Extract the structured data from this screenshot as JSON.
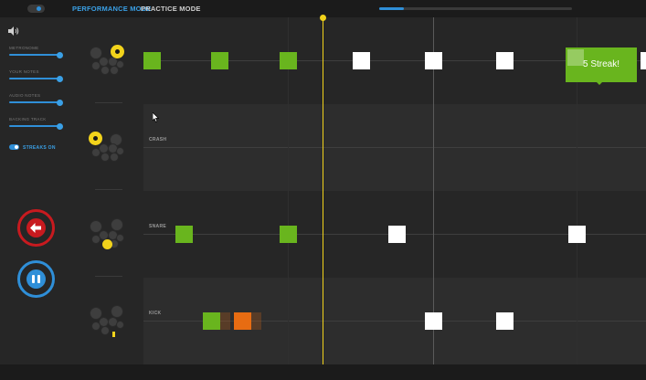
{
  "header": {
    "performance_mode": "PERFORMANCE MODE",
    "practice_mode": "PRACTICE MODE",
    "song_progress": 0.13
  },
  "sidebar": {
    "sliders": [
      {
        "label": "METRONOME",
        "value": 1.0
      },
      {
        "label": "YOUR NOTES",
        "value": 1.0
      },
      {
        "label": "AUDIO NOTES",
        "value": 1.0
      },
      {
        "label": "BACKING TRACK",
        "value": 1.0
      }
    ],
    "streaks_label": "STREAKS ON",
    "streaks_on": true
  },
  "lanes": [
    {
      "id": "hihat",
      "name": ""
    },
    {
      "id": "crash",
      "name": "CRASH"
    },
    {
      "id": "snare",
      "name": "SNARE"
    },
    {
      "id": "kick",
      "name": "KICK"
    }
  ],
  "toast": {
    "text": "5 Streak!"
  },
  "colors": {
    "accent": "#2f8fd8",
    "hit": "#69b51e",
    "miss": "#e76c12",
    "upcoming": "#ffffff",
    "playhead": "#f2d31b",
    "back_button": "#c81a1f"
  },
  "icons": {
    "speaker": "speaker-icon",
    "back": "arrow-left-icon",
    "pause": "pause-icon",
    "cursor": "mouse-pointer-icon"
  }
}
